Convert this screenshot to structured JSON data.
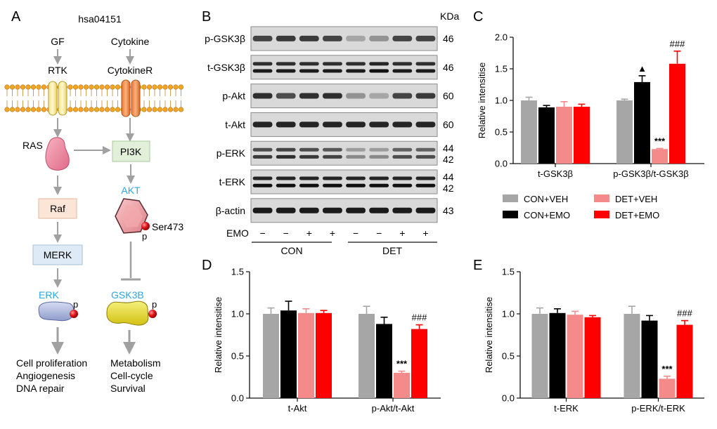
{
  "figure": {
    "panel_labels": [
      "A",
      "B",
      "C",
      "D",
      "E"
    ]
  },
  "pathway": {
    "title": "hsa04151",
    "gf": "GF",
    "cytokine": "Cytokine",
    "rtk": "RTK",
    "cytokiner": "CytokineR",
    "ras": "RAS",
    "pi3k": "PI3K",
    "akt": "AKT",
    "ser": "Ser473",
    "p": "p",
    "raf": "Raf",
    "merk": "MERK",
    "erk": "ERK",
    "gsk": "GSK3B",
    "outcomes_left": [
      "Cell proliferation",
      "Angiogenesis",
      "DNA repair"
    ],
    "outcomes_right": [
      "Metabolism",
      "Cell-cycle",
      "Survival"
    ],
    "colors": {
      "highlight": "#29a8e0",
      "membrane_head": "#f1a525"
    }
  },
  "blot": {
    "kda_header": "KDa",
    "bands": [
      {
        "label": "p-GSK3β",
        "kda": "46"
      },
      {
        "label": "t-GSK3β",
        "kda": "46"
      },
      {
        "label": "p-Akt",
        "kda": "60"
      },
      {
        "label": "t-Akt",
        "kda": "60"
      },
      {
        "label": "p-ERK",
        "kda": "44",
        "kda2": "42"
      },
      {
        "label": "t-ERK",
        "kda": "44",
        "kda2": "42"
      },
      {
        "label": "β-actin",
        "kda": "43"
      }
    ],
    "emo_label": "EMO",
    "emo_signs": [
      "−",
      "−",
      "+",
      "+",
      "−",
      "−",
      "+",
      "+"
    ],
    "groups": [
      "CON",
      "DET"
    ]
  },
  "legend": [
    {
      "name": "CON+VEH",
      "color": "#a6a6a6"
    },
    {
      "name": "CON+EMO",
      "color": "#000000"
    },
    {
      "name": "DET+VEH",
      "color": "#f58a8a"
    },
    {
      "name": "DET+EMO",
      "color": "#ff0000"
    }
  ],
  "chart_data": [
    {
      "id": "C",
      "type": "bar",
      "ylabel": "Relative intensitise",
      "ylim": [
        0,
        2.0
      ],
      "yticks": [
        "0.0",
        "0.5",
        "1.0",
        "1.5",
        "2.0"
      ],
      "categories": [
        "t-GSK3β",
        "p-GSK3β/t-GSK3β"
      ],
      "series": [
        {
          "name": "CON+VEH",
          "values": [
            1.0,
            1.0
          ],
          "errors": [
            0.05,
            0.02
          ]
        },
        {
          "name": "CON+EMO",
          "values": [
            0.89,
            1.29
          ],
          "errors": [
            0.03,
            0.1
          ]
        },
        {
          "name": "DET+VEH",
          "values": [
            0.9,
            0.23
          ],
          "errors": [
            0.08,
            0.01
          ]
        },
        {
          "name": "DET+EMO",
          "values": [
            0.9,
            1.58
          ],
          "errors": [
            0.04,
            0.2
          ]
        }
      ],
      "annotations": [
        {
          "category": 1,
          "series": 1,
          "text": "▲"
        },
        {
          "category": 1,
          "series": 2,
          "text": "***"
        },
        {
          "category": 1,
          "series": 3,
          "text": "###"
        }
      ]
    },
    {
      "id": "D",
      "type": "bar",
      "ylabel": "Relative intensitise",
      "ylim": [
        0,
        1.5
      ],
      "yticks": [
        "0.0",
        "0.5",
        "1.0",
        "1.5"
      ],
      "categories": [
        "t-Akt",
        "p-Akt/t-Akt"
      ],
      "series": [
        {
          "name": "CON+VEH",
          "values": [
            1.0,
            1.0
          ],
          "errors": [
            0.07,
            0.09
          ]
        },
        {
          "name": "CON+EMO",
          "values": [
            1.04,
            0.88
          ],
          "errors": [
            0.11,
            0.08
          ]
        },
        {
          "name": "DET+VEH",
          "values": [
            1.01,
            0.3
          ],
          "errors": [
            0.05,
            0.02
          ]
        },
        {
          "name": "DET+EMO",
          "values": [
            1.01,
            0.82
          ],
          "errors": [
            0.03,
            0.05
          ]
        }
      ],
      "annotations": [
        {
          "category": 1,
          "series": 2,
          "text": "***"
        },
        {
          "category": 1,
          "series": 3,
          "text": "###"
        }
      ]
    },
    {
      "id": "E",
      "type": "bar",
      "ylabel": "Relative intensitise",
      "ylim": [
        0,
        1.5
      ],
      "yticks": [
        "0.0",
        "0.5",
        "1.0",
        "1.5"
      ],
      "categories": [
        "t-ERK",
        "p-ERK/t-ERK"
      ],
      "series": [
        {
          "name": "CON+VEH",
          "values": [
            1.0,
            1.0
          ],
          "errors": [
            0.07,
            0.09
          ]
        },
        {
          "name": "CON+EMO",
          "values": [
            1.01,
            0.92
          ],
          "errors": [
            0.05,
            0.06
          ]
        },
        {
          "name": "DET+VEH",
          "values": [
            0.99,
            0.23
          ],
          "errors": [
            0.04,
            0.03
          ]
        },
        {
          "name": "DET+EMO",
          "values": [
            0.96,
            0.87
          ],
          "errors": [
            0.02,
            0.05
          ]
        }
      ],
      "annotations": [
        {
          "category": 1,
          "series": 2,
          "text": "***"
        },
        {
          "category": 1,
          "series": 3,
          "text": "###"
        }
      ]
    }
  ]
}
